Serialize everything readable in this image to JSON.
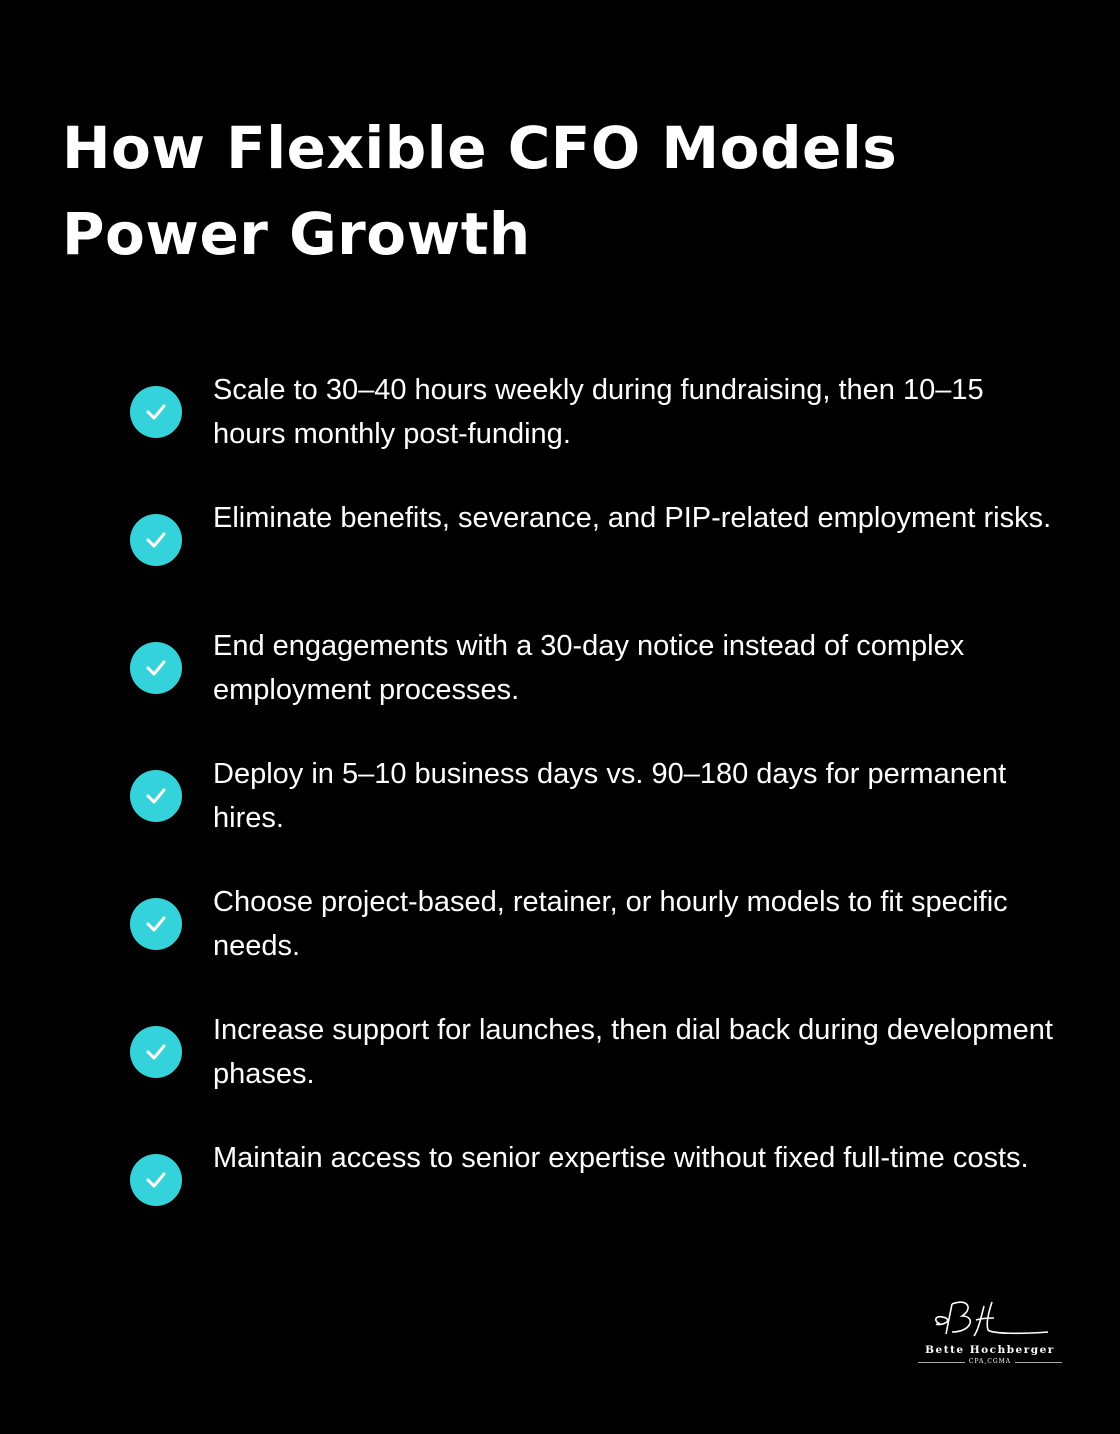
{
  "title_lines": [
    "How Flexible CFO Models",
    "Power Growth"
  ],
  "accent_color": "#34d3dc",
  "items": [
    {
      "icon": "check-circle-icon",
      "text": "Scale to 30–40 hours weekly during fundraising, then 10–15 hours monthly post-funding."
    },
    {
      "icon": "check-circle-icon",
      "text": "Eliminate benefits, severance, and PIP-related employment risks."
    },
    {
      "icon": "check-circle-icon",
      "text": "End engagements with a 30-day notice instead of complex employment processes."
    },
    {
      "icon": "check-circle-icon",
      "text": "Deploy in 5–10 business days vs. 90–180 days for permanent hires."
    },
    {
      "icon": "check-circle-icon",
      "text": "Choose project-based, retainer, or hourly models to fit specific needs."
    },
    {
      "icon": "check-circle-icon",
      "text": "Increase support for launches, then dial back during development phases."
    },
    {
      "icon": "check-circle-icon",
      "text": "Maintain access to senior expertise without fixed full-time costs."
    }
  ],
  "logo": {
    "monogram": "BH",
    "name": "Bette Hochberger",
    "credentials": "CPA,CGMA"
  }
}
